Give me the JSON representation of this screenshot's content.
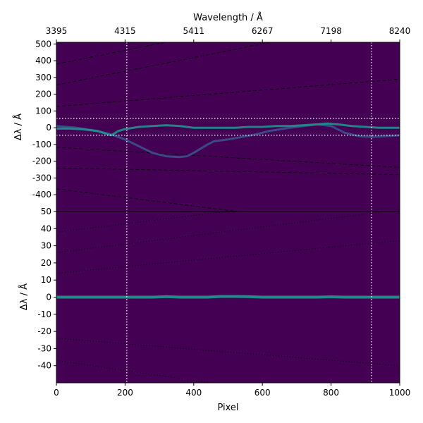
{
  "chart_data": [
    {
      "type": "heatmap",
      "title": "",
      "xlabel": "",
      "ylabel": "Δλ / Å",
      "top_axis": {
        "label": "Wavelength / Å",
        "ticks": [
          {
            "label": "3395",
            "pixel": 0
          },
          {
            "label": "4315",
            "pixel": 200
          },
          {
            "label": "5411",
            "pixel": 400
          },
          {
            "label": "6267",
            "pixel": 600
          },
          {
            "label": "7198",
            "pixel": 800
          },
          {
            "label": "8240",
            "pixel": 1000
          }
        ]
      },
      "xlim": [
        0,
        1000
      ],
      "ylim": [
        -500,
        510
      ],
      "y_ticks": [
        500,
        400,
        300,
        200,
        100,
        0,
        -100,
        -200,
        -300,
        -400
      ],
      "y_tick_labels": [
        "500",
        "400",
        "300",
        "200",
        "100",
        "0",
        "-100",
        "-200",
        "-300",
        "-400"
      ],
      "colormap": "viridis",
      "reference_lines": {
        "vertical_pixels": [
          205,
          918
        ],
        "horizontal_dlambda": [
          55,
          -45
        ],
        "style": "dotted",
        "color": "#ffffff"
      },
      "dashed_guides": [
        {
          "x": [
            0,
            1000
          ],
          "y": [
            380,
            790
          ]
        },
        {
          "x": [
            0,
            1000
          ],
          "y": [
            255,
            665
          ]
        },
        {
          "x": [
            0,
            1000
          ],
          "y": [
            127,
            290
          ]
        },
        {
          "x": [
            0,
            1000
          ],
          "y": [
            -117,
            -237
          ]
        },
        {
          "x": [
            0,
            1000
          ],
          "y": [
            -240,
            -280
          ]
        },
        {
          "x": [
            0,
            1000
          ],
          "y": [
            -365,
            -620
          ]
        }
      ],
      "residual_trace": {
        "x": [
          0,
          40,
          80,
          120,
          160,
          180,
          200,
          240,
          280,
          320,
          360,
          380,
          400,
          440,
          480,
          520,
          560,
          600,
          640,
          680,
          720,
          760,
          790,
          820,
          860,
          900,
          940,
          980,
          1000
        ],
        "y": [
          -5,
          -5,
          -10,
          -20,
          -45,
          -20,
          -8,
          5,
          10,
          15,
          10,
          5,
          0,
          0,
          0,
          0,
          5,
          5,
          10,
          10,
          15,
          20,
          25,
          20,
          10,
          5,
          0,
          0,
          0
        ]
      },
      "secondary_trace": {
        "x": [
          0,
          60,
          120,
          160,
          200,
          240,
          280,
          320,
          360,
          380,
          400,
          440,
          460,
          500,
          540,
          580,
          620,
          680,
          720,
          760,
          800,
          840,
          880,
          920,
          960,
          1000
        ],
        "y": [
          10,
          0,
          -20,
          -40,
          -70,
          -110,
          -150,
          -170,
          -175,
          -170,
          -150,
          -100,
          -80,
          -70,
          -55,
          -40,
          -20,
          0,
          10,
          20,
          10,
          -30,
          -50,
          -55,
          -50,
          -45
        ]
      }
    },
    {
      "type": "heatmap",
      "title": "",
      "xlabel": "Pixel",
      "ylabel": "Δλ / Å",
      "xlim": [
        0,
        1000
      ],
      "ylim": [
        -50,
        50
      ],
      "x_ticks": [
        0,
        200,
        400,
        600,
        800,
        1000
      ],
      "x_tick_labels": [
        "0",
        "200",
        "400",
        "600",
        "800",
        "1000"
      ],
      "y_ticks": [
        50,
        40,
        30,
        20,
        10,
        0,
        -10,
        -20,
        -30,
        -40
      ],
      "y_tick_labels": [
        "50",
        "40",
        "30",
        "20",
        "10",
        "0",
        "-10",
        "-20",
        "-30",
        "-40"
      ],
      "colormap": "viridis",
      "reference_lines": {
        "vertical_pixels": [
          205,
          918
        ],
        "style": "dotted",
        "color": "#ffffff"
      },
      "dotted_guides": [
        {
          "x": [
            0,
            1000
          ],
          "y": [
            38,
            62
          ]
        },
        {
          "x": [
            0,
            1000
          ],
          "y": [
            26,
            51
          ]
        },
        {
          "x": [
            0,
            1000
          ],
          "y": [
            14,
            33
          ]
        },
        {
          "x": [
            0,
            1000
          ],
          "y": [
            -24,
            -40
          ]
        },
        {
          "x": [
            0,
            1000
          ],
          "y": [
            -37,
            -66
          ]
        }
      ],
      "residual_trace": {
        "x": [
          0,
          100,
          200,
          240,
          280,
          320,
          360,
          400,
          440,
          480,
          520,
          560,
          600,
          640,
          680,
          720,
          760,
          800,
          840,
          880,
          920,
          960,
          1000
        ],
        "y": [
          0,
          0,
          0,
          0,
          0,
          0.3,
          0,
          0,
          0,
          0.4,
          0.4,
          0.3,
          0,
          0,
          0,
          0,
          0,
          0.2,
          0,
          0,
          0,
          0,
          0
        ]
      }
    }
  ]
}
